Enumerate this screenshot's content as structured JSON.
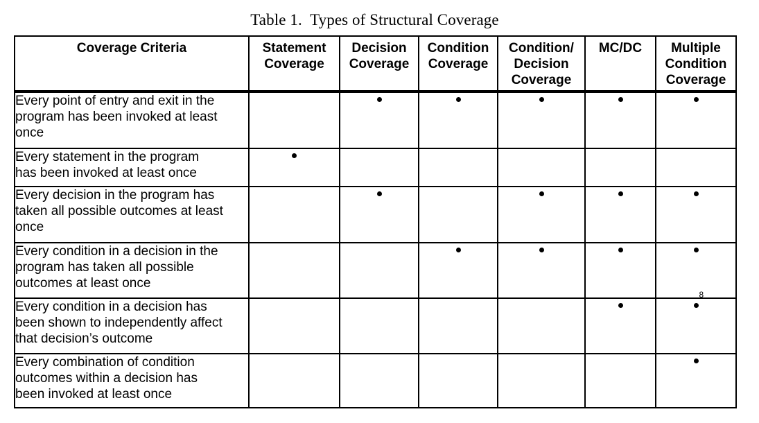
{
  "caption": "Table 1.  Types of Structural Coverage",
  "columns": {
    "criteria": "Coverage Criteria",
    "statement": [
      "Statement",
      "Coverage"
    ],
    "decision": [
      "Decision",
      "Coverage"
    ],
    "condition": [
      "Condition",
      "Coverage"
    ],
    "condition_decision": [
      "Condition/",
      "Decision",
      "Coverage"
    ],
    "mcdc": "MC/DC",
    "multiple_condition": [
      "Multiple",
      "Condition",
      "Coverage"
    ]
  },
  "marker": "•",
  "rows": [
    {
      "criteria": [
        "Every point of entry and exit in the",
        "program has been invoked at least",
        "once"
      ],
      "marks": [
        false,
        true,
        true,
        true,
        true,
        true
      ]
    },
    {
      "criteria": [
        "Every statement in the program",
        "has been invoked at least once"
      ],
      "marks": [
        true,
        false,
        false,
        false,
        false,
        false
      ]
    },
    {
      "criteria": [
        "Every decision in the program has",
        "taken all possible outcomes at least",
        "once"
      ],
      "marks": [
        false,
        true,
        false,
        true,
        true,
        true
      ]
    },
    {
      "criteria": [
        "Every condition in a decision in the",
        "program has taken all possible",
        "outcomes at least once"
      ],
      "marks": [
        false,
        false,
        true,
        true,
        true,
        true
      ]
    },
    {
      "criteria": [
        "Every condition in a decision has",
        "been shown to independently affect",
        "that decision’s outcome"
      ],
      "marks": [
        false,
        false,
        false,
        false,
        true,
        true
      ],
      "footnote": {
        "column": 5,
        "text": "8"
      }
    },
    {
      "criteria": [
        "Every combination of condition",
        "outcomes within a decision has",
        "been invoked at least once"
      ],
      "marks": [
        false,
        false,
        false,
        false,
        false,
        true
      ]
    }
  ]
}
